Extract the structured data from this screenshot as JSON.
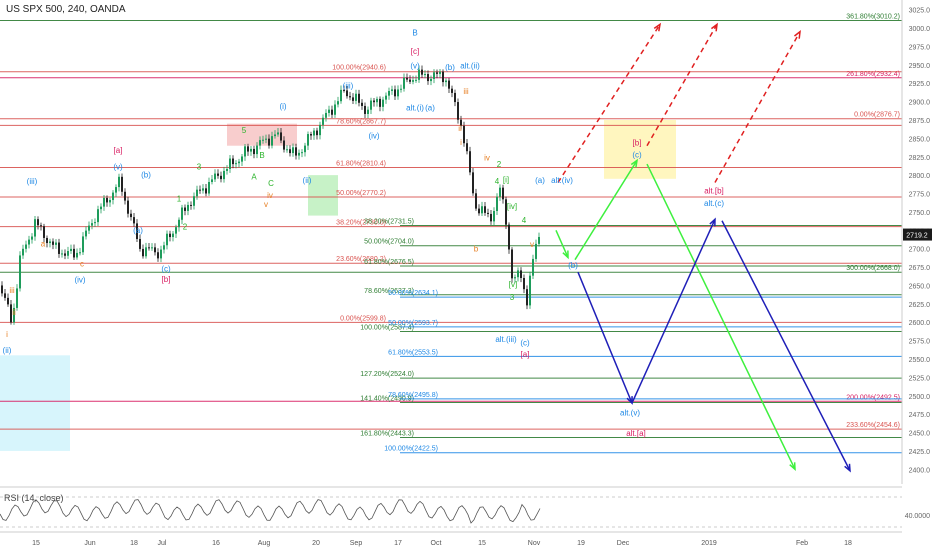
{
  "header": {
    "symbol": "US SPX 500, 240, OANDA"
  },
  "rsi": {
    "label": "RSI (14, close)",
    "value_label": "40.0000"
  },
  "last_price": "2719.2",
  "colors": {
    "candle_up": "#1e9c5b",
    "candle_down": "#222222",
    "red_level": "#d9534f",
    "green_level": "#2e7d32",
    "blue_level": "#1e88e5",
    "pink_level": "#d81b60",
    "wave_blue": "#1e88e5",
    "wave_green": "#2bb32b",
    "wave_orange": "#e67e22",
    "wave_pink": "#d81b60",
    "zone_red": "#f6c1c1",
    "zone_green": "#b9efb9",
    "zone_cyan": "#cdf3fb",
    "zone_yellow": "#fff5b8",
    "projection_green": "#3ef03e",
    "projection_blue": "#1f1fb8",
    "projection_red": "#e02020"
  },
  "chart_data": {
    "type": "candlestick",
    "title": "US SPX 500, 240, OANDA",
    "ylim": [
      2380,
      3030
    ],
    "y_ticks": [
      "3025.0",
      "3000.0",
      "2975.0",
      "2950.0",
      "2925.0",
      "2900.0",
      "2875.0",
      "2850.0",
      "2825.0",
      "2800.0",
      "2775.0",
      "2750.0",
      "2725.0",
      "2700.0",
      "2675.0",
      "2650.0",
      "2625.0",
      "2600.0",
      "2575.0",
      "2550.0",
      "2525.0",
      "2500.0",
      "2475.0",
      "2450.0",
      "2425.0",
      "2400.0"
    ],
    "x_ticks": [
      "15",
      "Jun",
      "18",
      "Jul",
      "16",
      "Aug",
      "20",
      "Sep",
      "17",
      "Oct",
      "15",
      "Nov",
      "19",
      "Dec",
      "2019",
      "Feb",
      "18"
    ],
    "levels": [
      {
        "text": "361.80%(3010.2)",
        "value": 3010.2,
        "group": "green_right"
      },
      {
        "text": "261.80%(2932.4)",
        "value": 2932.4,
        "group": "pink_right"
      },
      {
        "text": "0.00%(2876.7)",
        "value": 2876.7,
        "group": "red_right"
      },
      {
        "text": "300.00%(2668.0)",
        "value": 2668.0,
        "group": "green_right"
      },
      {
        "text": "200.00%(2492.5)",
        "value": 2492.5,
        "group": "pink_right"
      },
      {
        "text": "233.60%(2454.6)",
        "value": 2454.6,
        "group": "red_right"
      },
      {
        "text": "100.00%(2940.6)",
        "value": 2940.6,
        "group": "red"
      },
      {
        "text": "78.60%(2867.7)",
        "value": 2867.7,
        "group": "red"
      },
      {
        "text": "61.80%(2810.4)",
        "value": 2810.4,
        "group": "red"
      },
      {
        "text": "50.00%(2770.2)",
        "value": 2770.2,
        "group": "red"
      },
      {
        "text": "38.20%(2730.0)",
        "value": 2730.0,
        "group": "red"
      },
      {
        "text": "23.60%(2680.2)",
        "value": 2680.2,
        "group": "red"
      },
      {
        "text": "0.00%(2599.8)",
        "value": 2599.8,
        "group": "red"
      },
      {
        "text": "38.20%(2731.5)",
        "value": 2731.5,
        "group": "green"
      },
      {
        "text": "50.00%(2704.0)",
        "value": 2704.0,
        "group": "green"
      },
      {
        "text": "61.80%(2676.5)",
        "value": 2676.5,
        "group": "green"
      },
      {
        "text": "78.60%(2637.3)",
        "value": 2637.3,
        "group": "green"
      },
      {
        "text": "100.00%(2587.4)",
        "value": 2587.4,
        "group": "green"
      },
      {
        "text": "127.20%(2524.0)",
        "value": 2524.0,
        "group": "green"
      },
      {
        "text": "141.40%(2490.9)",
        "value": 2490.9,
        "group": "green"
      },
      {
        "text": "161.80%(2443.3)",
        "value": 2443.3,
        "group": "green"
      },
      {
        "text": "50.00%(2634.1)",
        "value": 2634.1,
        "group": "blue"
      },
      {
        "text": "50.00%(2593.7)",
        "value": 2593.7,
        "group": "blue"
      },
      {
        "text": "61.80%(2553.5)",
        "value": 2553.5,
        "group": "blue"
      },
      {
        "text": "78.60%(2495.8)",
        "value": 2495.8,
        "group": "blue"
      },
      {
        "text": "100.00%(2422.5)",
        "value": 2422.5,
        "group": "blue"
      }
    ],
    "wave_labels": [
      {
        "text": "B",
        "color": "wave_blue"
      },
      {
        "text": "[c]",
        "color": "wave_pink"
      },
      {
        "text": "(v)",
        "color": "wave_blue"
      },
      {
        "text": "(b)",
        "color": "wave_blue"
      },
      {
        "text": "alt.(ii)",
        "color": "wave_blue"
      },
      {
        "text": "(iii)",
        "color": "wave_blue"
      },
      {
        "text": "alt.(i)",
        "color": "wave_blue"
      },
      {
        "text": "(a)",
        "color": "wave_blue"
      },
      {
        "text": "(i)",
        "color": "wave_blue"
      },
      {
        "text": "(iv)",
        "color": "wave_blue"
      },
      {
        "text": "(ii)",
        "color": "wave_blue"
      },
      {
        "text": "[a]",
        "color": "wave_pink"
      },
      {
        "text": "(v)",
        "color": "wave_blue"
      },
      {
        "text": "(b)",
        "color": "wave_blue"
      },
      {
        "text": "(iii)",
        "color": "wave_blue"
      },
      {
        "text": "(a)",
        "color": "wave_blue"
      },
      {
        "text": "(c)",
        "color": "wave_blue"
      },
      {
        "text": "[b]",
        "color": "wave_pink"
      },
      {
        "text": "(iv)",
        "color": "wave_blue"
      },
      {
        "text": "(ii)",
        "color": "wave_blue"
      },
      {
        "text": "(a)",
        "color": "wave_blue"
      },
      {
        "text": "alt.(iv)",
        "color": "wave_blue"
      },
      {
        "text": "(b)",
        "color": "wave_blue"
      },
      {
        "text": "(c)",
        "color": "wave_blue"
      },
      {
        "text": "alt.(iii)",
        "color": "wave_blue"
      },
      {
        "text": "[a]",
        "color": "wave_pink"
      },
      {
        "text": "[b]",
        "color": "wave_pink"
      },
      {
        "text": "(c)",
        "color": "wave_blue"
      },
      {
        "text": "alt.[b]",
        "color": "wave_pink"
      },
      {
        "text": "alt.(c)",
        "color": "wave_blue"
      },
      {
        "text": "alt.(v)",
        "color": "wave_blue"
      },
      {
        "text": "alt.[a]",
        "color": "wave_pink"
      },
      {
        "text": "5",
        "color": "wave_green"
      },
      {
        "text": "B",
        "color": "wave_green"
      },
      {
        "text": "A",
        "color": "wave_green"
      },
      {
        "text": "C",
        "color": "wave_green"
      },
      {
        "text": "3",
        "color": "wave_green"
      },
      {
        "text": "1",
        "color": "wave_green"
      },
      {
        "text": "2",
        "color": "wave_green"
      },
      {
        "text": "4",
        "color": "wave_green"
      },
      {
        "text": "2",
        "color": "wave_green"
      },
      {
        "text": "4",
        "color": "wave_green"
      },
      {
        "text": "3",
        "color": "wave_green"
      },
      {
        "text": "[i]",
        "color": "wave_green"
      },
      {
        "text": "[iv]",
        "color": "wave_green"
      },
      {
        "text": "[v]",
        "color": "wave_green"
      },
      {
        "text": "iv",
        "color": "wave_orange"
      },
      {
        "text": "v",
        "color": "wave_orange"
      },
      {
        "text": "iii",
        "color": "wave_orange"
      },
      {
        "text": "ii",
        "color": "wave_orange"
      },
      {
        "text": "i",
        "color": "wave_orange"
      },
      {
        "text": "iv",
        "color": "wave_orange"
      },
      {
        "text": "v",
        "color": "wave_orange"
      },
      {
        "text": "b",
        "color": "wave_orange"
      },
      {
        "text": "a",
        "color": "wave_orange"
      },
      {
        "text": "c",
        "color": "wave_orange"
      },
      {
        "text": "ii",
        "color": "wave_orange"
      },
      {
        "text": "iii",
        "color": "wave_orange"
      },
      {
        "text": "i",
        "color": "wave_orange"
      }
    ]
  }
}
